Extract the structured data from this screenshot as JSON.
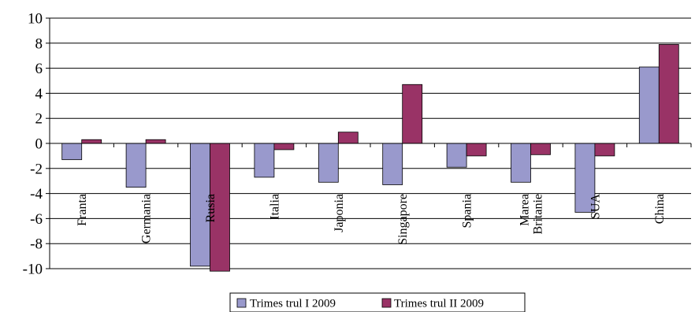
{
  "chart_data": {
    "type": "bar",
    "categories": [
      "Franta",
      "Germania",
      "Rusia",
      "Italia",
      "Japonia",
      "Singapore",
      "Spania",
      "Marea Britanie",
      "SUA",
      "China"
    ],
    "category_lines": [
      [
        "Franta"
      ],
      [
        "Germania"
      ],
      [
        "Rusia"
      ],
      [
        "Italia"
      ],
      [
        "Japonia"
      ],
      [
        "Singapore"
      ],
      [
        "Spania"
      ],
      [
        "Marea",
        "Britanie"
      ],
      [
        "SUA"
      ],
      [
        "China"
      ]
    ],
    "series": [
      {
        "name": "Trimes trul I 2009",
        "color": "#9999cc",
        "values": [
          -1.3,
          -3.5,
          -9.8,
          -2.7,
          -3.1,
          -3.3,
          -1.9,
          -3.1,
          -5.5,
          6.1
        ]
      },
      {
        "name": "Trimes trul II 2009",
        "color": "#993366",
        "values": [
          0.3,
          0.3,
          -10.2,
          -0.5,
          0.9,
          4.7,
          -1.0,
          -0.9,
          -1.0,
          7.9
        ]
      }
    ],
    "ylim": [
      -10,
      10
    ],
    "yticks": [
      "10",
      "8",
      "6",
      "4",
      "2",
      "0",
      "-2",
      "-4",
      "-6",
      "-8",
      "-10"
    ],
    "ytick_values": [
      10,
      8,
      6,
      4,
      2,
      0,
      -2,
      -4,
      -6,
      -8,
      -10
    ],
    "grid": true,
    "legend_position": "bottom",
    "title": "",
    "xlabel": "",
    "ylabel": ""
  }
}
